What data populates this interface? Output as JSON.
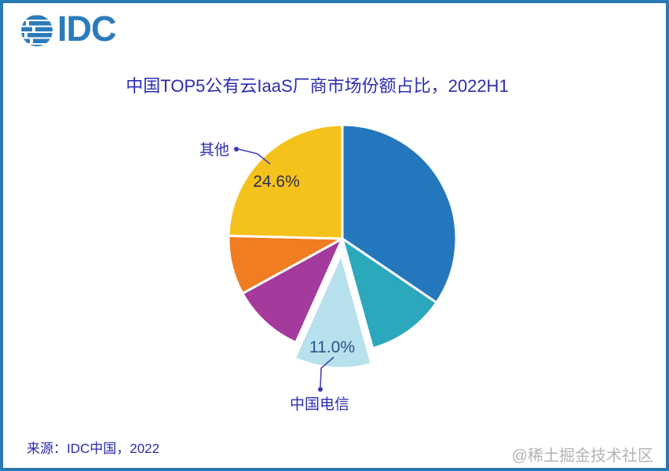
{
  "page": {
    "background": "#ffffff",
    "border_color": "#2979b5"
  },
  "logo": {
    "text": "IDC",
    "color": "#2b7bbb",
    "icon": "striped-globe-icon"
  },
  "chart_data": {
    "type": "pie",
    "title": "中国TOP5公有云IaaS厂商市场份额占比，2022H1",
    "start_angle_deg": 0,
    "direction": "clockwise",
    "legend": "none",
    "slices": [
      {
        "label": "",
        "value": 34.5,
        "value_label": "",
        "color": "#2577bd",
        "exploded": false
      },
      {
        "label": "",
        "value": 11.2,
        "value_label": "",
        "color": "#2ba8bb",
        "exploded": false
      },
      {
        "label": "中国电信",
        "value": 11.0,
        "value_label": "11.0%",
        "color": "#b7e1ec",
        "exploded": true
      },
      {
        "label": "",
        "value": 10.3,
        "value_label": "",
        "color": "#a43a9b",
        "exploded": false
      },
      {
        "label": "",
        "value": 8.4,
        "value_label": "",
        "color": "#f07d22",
        "exploded": false
      },
      {
        "label": "其他",
        "value": 24.6,
        "value_label": "24.6%",
        "color": "#f5c21b",
        "exploded": false
      }
    ],
    "slice_gap_color": "#ffffff"
  },
  "footer": {
    "source": "来源：IDC中国，2022"
  },
  "watermark": {
    "text": "@稀土掘金技术社区"
  }
}
